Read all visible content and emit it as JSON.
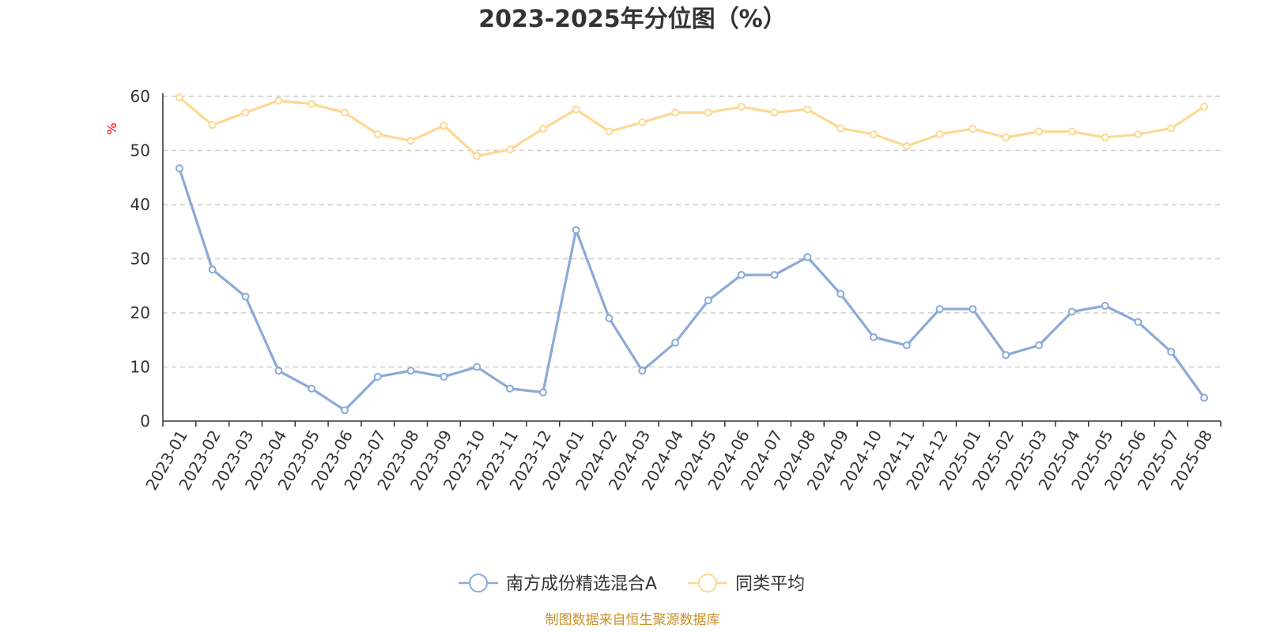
{
  "chart_data": {
    "type": "line",
    "title": "2023-2025年分位图（%）",
    "ylabel": "%",
    "xlabel": "",
    "ylim": [
      0,
      60
    ],
    "yticks": [
      0,
      10,
      20,
      30,
      40,
      50,
      60
    ],
    "grid": true,
    "legend_position": "bottom-center",
    "categories": [
      "2023-01",
      "2023-02",
      "2023-03",
      "2023-04",
      "2023-05",
      "2023-06",
      "2023-07",
      "2023-08",
      "2023-09",
      "2023-10",
      "2023-11",
      "2023-12",
      "2024-01",
      "2024-02",
      "2024-03",
      "2024-04",
      "2024-05",
      "2024-06",
      "2024-07",
      "2024-08",
      "2024-09",
      "2024-10",
      "2024-11",
      "2024-12",
      "2025-01",
      "2025-02",
      "2025-03",
      "2025-04",
      "2025-05",
      "2025-06",
      "2025-07",
      "2025-08"
    ],
    "series": [
      {
        "name": "南方成份精选混合A",
        "color": "#8aaad8",
        "values": [
          46.7,
          28.0,
          23.0,
          9.3,
          6.0,
          2.0,
          8.2,
          9.3,
          8.2,
          10.0,
          6.0,
          5.3,
          35.3,
          19.0,
          9.3,
          14.5,
          22.3,
          27.0,
          27.0,
          30.3,
          23.5,
          15.5,
          14.0,
          20.7,
          20.7,
          12.2,
          14.0,
          20.2,
          21.3,
          18.3,
          12.8,
          4.3
        ]
      },
      {
        "name": "同类平均",
        "color": "#fdd892",
        "values": [
          59.8,
          54.7,
          57.0,
          59.2,
          58.6,
          57.0,
          53.0,
          51.8,
          54.6,
          49.0,
          50.2,
          54.0,
          57.6,
          53.5,
          55.2,
          57.0,
          57.0,
          58.1,
          57.0,
          57.6,
          54.1,
          53.0,
          50.8,
          53.0,
          54.0,
          52.4,
          53.5,
          53.5,
          52.4,
          53.0,
          54.1,
          58.1
        ]
      }
    ]
  },
  "footer": {
    "source": "制图数据来自恒生聚源数据库"
  }
}
